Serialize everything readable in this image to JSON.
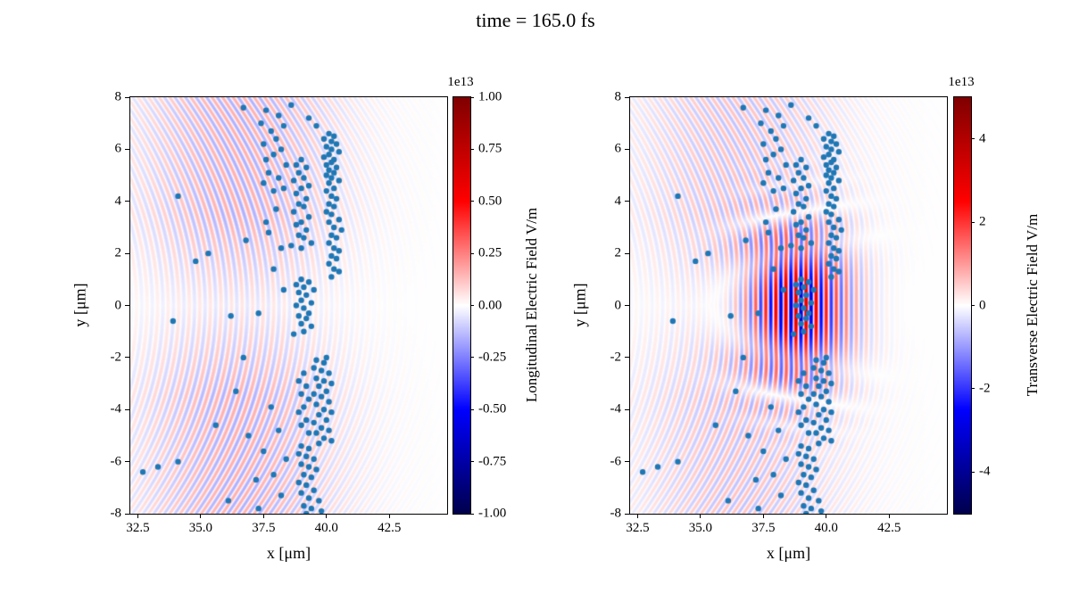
{
  "title": "time = 165.0 fs",
  "chart_data": [
    {
      "type": "scatter",
      "panel": "longitudinal-field",
      "xlabel": "x [μm]",
      "ylabel": "y [μm]",
      "xlim": [
        32.2,
        44.8
      ],
      "ylim": [
        -8,
        8
      ],
      "grid": false,
      "xtick_values": [
        32.5,
        35.0,
        37.5,
        40.0,
        42.5
      ],
      "xtick_labels": [
        "32.5",
        "35.0",
        "37.5",
        "40.0",
        "42.5"
      ],
      "ytick_values": [
        8,
        6,
        4,
        2,
        0,
        -2,
        -4,
        -6,
        -8
      ],
      "ytick_labels": [
        "8",
        "6",
        "4",
        "2",
        "0",
        "-2",
        "-4",
        "-6",
        "-8"
      ],
      "marker_color": "#1f77b4",
      "marker_size_px": 3.2,
      "points_ref": "scatter_points",
      "field": {
        "pattern": "wake_arcs",
        "colormap": "seismic",
        "wavelength_um": 0.42,
        "curvature": 0.045,
        "center_x": 36.5,
        "amplitude": 0.16
      },
      "colorbar": {
        "label": "Longitudinal Electric Field V/m",
        "offset_text": "1e13",
        "vmin": -1.0,
        "vmax": 1.0,
        "tick_values": [
          1.0,
          0.75,
          0.5,
          0.25,
          0.0,
          -0.25,
          -0.5,
          -0.75,
          -1.0
        ],
        "tick_labels": [
          "1.00",
          "0.75",
          "0.50",
          "0.25",
          "0.00",
          "-0.25",
          "-0.50",
          "-0.75",
          "-1.00"
        ],
        "colormap": "seismic"
      }
    },
    {
      "type": "scatter",
      "panel": "transverse-field",
      "xlabel": "x [μm]",
      "ylabel": "y [μm]",
      "xlim": [
        32.2,
        44.8
      ],
      "ylim": [
        -8,
        8
      ],
      "grid": false,
      "xtick_values": [
        32.5,
        35.0,
        37.5,
        40.0,
        42.5
      ],
      "xtick_labels": [
        "32.5",
        "35.0",
        "37.5",
        "40.0",
        "42.5"
      ],
      "ytick_values": [
        8,
        6,
        4,
        2,
        0,
        -2,
        -4,
        -6,
        -8
      ],
      "ytick_labels": [
        "8",
        "6",
        "4",
        "2",
        "0",
        "-2",
        "-4",
        "-6",
        "-8"
      ],
      "marker_color": "#1f77b4",
      "marker_size_px": 3.2,
      "points_ref": "scatter_points",
      "field": {
        "pattern": "laser_stripes",
        "colormap": "seismic",
        "wavelength_um": 0.42,
        "curvature": 0.045,
        "center_x": 36.5,
        "amplitude": 0.12,
        "stripe_wavelength_um": 0.4,
        "stripe_center_x": 38.8,
        "stripe_sigma_x": 1.4,
        "stripe_sigma_y": 1.9,
        "stripe_amplitude": 0.65
      },
      "colorbar": {
        "label": "Transverse Electric Field V/m",
        "offset_text": "1e13",
        "vmin": -5,
        "vmax": 5,
        "tick_values": [
          4,
          2,
          0,
          -2,
          -4
        ],
        "tick_labels": [
          "4",
          "2",
          "0",
          "-2",
          "-4"
        ],
        "colormap": "seismic"
      }
    }
  ],
  "scatter_points": [
    [
      40.1,
      6.6
    ],
    [
      40.3,
      6.5
    ],
    [
      39.9,
      6.4
    ],
    [
      40.2,
      6.3
    ],
    [
      40.4,
      6.2
    ],
    [
      40.0,
      6.1
    ],
    [
      40.2,
      6.0
    ],
    [
      40.5,
      5.9
    ],
    [
      40.1,
      5.8
    ],
    [
      39.9,
      5.7
    ],
    [
      40.3,
      5.6
    ],
    [
      40.2,
      5.5
    ],
    [
      40.0,
      5.4
    ],
    [
      40.4,
      5.3
    ],
    [
      40.1,
      5.2
    ],
    [
      40.3,
      5.1
    ],
    [
      40.0,
      5.0
    ],
    [
      40.2,
      4.9
    ],
    [
      40.5,
      4.8
    ],
    [
      40.1,
      4.7
    ],
    [
      40.3,
      4.5
    ],
    [
      40.0,
      4.4
    ],
    [
      40.2,
      4.2
    ],
    [
      40.4,
      4.1
    ],
    [
      40.1,
      3.9
    ],
    [
      40.3,
      3.8
    ],
    [
      40.0,
      3.6
    ],
    [
      40.2,
      3.5
    ],
    [
      40.5,
      3.3
    ],
    [
      40.1,
      3.2
    ],
    [
      40.3,
      3.0
    ],
    [
      40.6,
      2.9
    ],
    [
      40.2,
      2.7
    ],
    [
      40.4,
      2.6
    ],
    [
      40.1,
      2.4
    ],
    [
      40.3,
      2.2
    ],
    [
      40.5,
      2.1
    ],
    [
      40.2,
      1.9
    ],
    [
      40.4,
      1.8
    ],
    [
      40.1,
      1.6
    ],
    [
      40.3,
      1.4
    ],
    [
      40.5,
      1.3
    ],
    [
      40.2,
      1.1
    ],
    [
      39.0,
      5.6
    ],
    [
      38.8,
      5.4
    ],
    [
      39.2,
      5.3
    ],
    [
      38.9,
      5.1
    ],
    [
      39.1,
      4.9
    ],
    [
      38.7,
      4.8
    ],
    [
      39.3,
      4.6
    ],
    [
      39.0,
      4.5
    ],
    [
      38.8,
      4.3
    ],
    [
      39.2,
      4.1
    ],
    [
      38.9,
      3.9
    ],
    [
      39.1,
      3.8
    ],
    [
      38.7,
      3.6
    ],
    [
      39.3,
      3.4
    ],
    [
      39.0,
      3.2
    ],
    [
      38.8,
      3.1
    ],
    [
      39.2,
      2.9
    ],
    [
      38.9,
      2.7
    ],
    [
      39.1,
      2.6
    ],
    [
      39.4,
      2.4
    ],
    [
      38.6,
      2.3
    ],
    [
      39.0,
      2.2
    ],
    [
      37.6,
      7.5
    ],
    [
      38.1,
      7.3
    ],
    [
      37.4,
      7.0
    ],
    [
      38.3,
      6.9
    ],
    [
      37.8,
      6.7
    ],
    [
      38.0,
      6.4
    ],
    [
      37.5,
      6.2
    ],
    [
      38.2,
      6.0
    ],
    [
      37.9,
      5.8
    ],
    [
      37.6,
      5.6
    ],
    [
      38.4,
      5.4
    ],
    [
      37.7,
      5.1
    ],
    [
      38.1,
      4.9
    ],
    [
      37.5,
      4.7
    ],
    [
      38.3,
      4.5
    ],
    [
      37.9,
      4.4
    ],
    [
      36.7,
      7.6
    ],
    [
      39.3,
      7.2
    ],
    [
      39.6,
      6.9
    ],
    [
      38.6,
      7.7
    ],
    [
      39.0,
      1.0
    ],
    [
      39.3,
      0.9
    ],
    [
      38.8,
      0.8
    ],
    [
      39.1,
      0.7
    ],
    [
      39.5,
      0.6
    ],
    [
      38.9,
      0.5
    ],
    [
      39.2,
      0.4
    ],
    [
      39.0,
      0.2
    ],
    [
      39.4,
      0.1
    ],
    [
      38.8,
      0.0
    ],
    [
      39.1,
      -0.1
    ],
    [
      39.3,
      -0.3
    ],
    [
      38.9,
      -0.4
    ],
    [
      39.2,
      -0.5
    ],
    [
      39.0,
      -0.7
    ],
    [
      39.4,
      -0.8
    ],
    [
      39.1,
      -1.0
    ],
    [
      38.7,
      -1.1
    ],
    [
      39.6,
      -2.1
    ],
    [
      39.9,
      -2.2
    ],
    [
      39.5,
      -2.4
    ],
    [
      39.8,
      -2.5
    ],
    [
      40.1,
      -2.6
    ],
    [
      39.6,
      -2.8
    ],
    [
      39.9,
      -2.9
    ],
    [
      40.2,
      -3.0
    ],
    [
      39.7,
      -3.1
    ],
    [
      40.0,
      -3.3
    ],
    [
      39.5,
      -3.4
    ],
    [
      39.8,
      -3.5
    ],
    [
      40.1,
      -3.7
    ],
    [
      39.6,
      -3.8
    ],
    [
      39.9,
      -4.0
    ],
    [
      40.2,
      -4.1
    ],
    [
      39.7,
      -4.2
    ],
    [
      40.0,
      -4.4
    ],
    [
      39.5,
      -4.5
    ],
    [
      39.8,
      -4.7
    ],
    [
      40.1,
      -4.8
    ],
    [
      39.6,
      -4.9
    ],
    [
      39.9,
      -5.1
    ],
    [
      40.2,
      -5.2
    ],
    [
      39.7,
      -5.3
    ],
    [
      40.0,
      -2.0
    ],
    [
      39.1,
      -2.6
    ],
    [
      38.9,
      -2.9
    ],
    [
      39.2,
      -3.1
    ],
    [
      39.0,
      -3.4
    ],
    [
      39.3,
      -3.6
    ],
    [
      39.1,
      -3.9
    ],
    [
      38.9,
      -4.1
    ],
    [
      39.2,
      -4.4
    ],
    [
      39.0,
      -4.6
    ],
    [
      39.3,
      -4.9
    ],
    [
      39.0,
      -5.4
    ],
    [
      39.3,
      -5.5
    ],
    [
      38.9,
      -5.7
    ],
    [
      39.2,
      -5.8
    ],
    [
      39.5,
      -5.9
    ],
    [
      39.0,
      -6.1
    ],
    [
      39.3,
      -6.2
    ],
    [
      39.6,
      -6.3
    ],
    [
      39.1,
      -6.5
    ],
    [
      39.4,
      -6.6
    ],
    [
      38.9,
      -6.8
    ],
    [
      39.2,
      -6.9
    ],
    [
      39.5,
      -7.1
    ],
    [
      39.0,
      -7.2
    ],
    [
      39.3,
      -7.4
    ],
    [
      39.7,
      -7.5
    ],
    [
      39.1,
      -7.7
    ],
    [
      39.4,
      -7.8
    ],
    [
      39.8,
      -7.9
    ],
    [
      39.2,
      -8.0
    ],
    [
      32.7,
      -6.4
    ],
    [
      33.3,
      -6.2
    ],
    [
      34.1,
      -6.0
    ],
    [
      36.9,
      -5.0
    ],
    [
      35.6,
      -4.6
    ],
    [
      36.4,
      -3.3
    ],
    [
      36.7,
      -2.0
    ],
    [
      37.8,
      -3.9
    ],
    [
      37.2,
      -6.7
    ],
    [
      37.9,
      -6.5
    ],
    [
      36.1,
      -7.5
    ],
    [
      37.3,
      -7.8
    ],
    [
      38.2,
      -7.3
    ],
    [
      38.4,
      -5.9
    ],
    [
      37.5,
      -5.6
    ],
    [
      38.1,
      -4.8
    ],
    [
      33.9,
      -0.6
    ],
    [
      36.2,
      -0.4
    ],
    [
      37.3,
      -0.3
    ],
    [
      34.8,
      1.7
    ],
    [
      35.3,
      2.0
    ],
    [
      34.1,
      4.2
    ],
    [
      36.8,
      2.5
    ],
    [
      37.7,
      2.8
    ],
    [
      38.2,
      2.2
    ],
    [
      37.9,
      1.4
    ],
    [
      38.3,
      0.6
    ],
    [
      37.6,
      3.2
    ],
    [
      38.0,
      3.7
    ]
  ]
}
